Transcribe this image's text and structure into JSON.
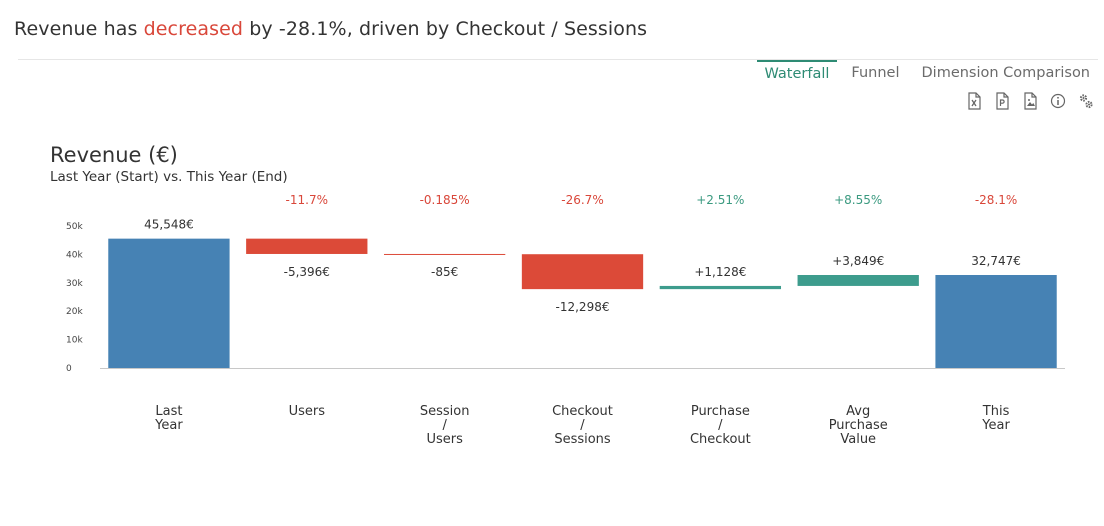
{
  "headline": {
    "prefix": "Revenue has",
    "highlight": "decreased",
    "suffix": "by -28.1%, driven by Checkout / Sessions"
  },
  "tabs": [
    {
      "label": "Waterfall",
      "active": true
    },
    {
      "label": "Funnel",
      "active": false
    },
    {
      "label": "Dimension Comparison",
      "active": false
    }
  ],
  "toolbar": {
    "icons": [
      "excel-export-icon",
      "pdf-export-icon",
      "image-export-icon",
      "info-icon",
      "settings-icon"
    ]
  },
  "colors": {
    "total": "#4682b4",
    "decrease": "#dc4a38",
    "increase": "#3d9c8d",
    "negative_text": "#d9473a",
    "positive_text": "#3b9a80",
    "axis": "#c8c8c8"
  },
  "chart_data": {
    "type": "waterfall",
    "title": "Revenue (€)",
    "subtitle": "Last Year (Start) vs. This Year (End)",
    "ylim": [
      0,
      50000
    ],
    "yticks": [
      "0",
      "10k",
      "20k",
      "30k",
      "40k",
      "50k"
    ],
    "ytick_values": [
      0,
      10000,
      20000,
      30000,
      40000,
      50000
    ],
    "steps": [
      {
        "category": [
          "Last",
          "Year"
        ],
        "kind": "total",
        "start": 0,
        "end": 45548,
        "value_label": "45,548€",
        "pct_label": ""
      },
      {
        "category": [
          "Users"
        ],
        "kind": "decrease",
        "start": 45548,
        "end": 40152,
        "value_label": "-5,396€",
        "pct_label": "-11.7%"
      },
      {
        "category": [
          "Session",
          "/",
          "Users"
        ],
        "kind": "decrease",
        "start": 40152,
        "end": 40067,
        "value_label": "-85€",
        "pct_label": "-0.185%"
      },
      {
        "category": [
          "Checkout",
          "/",
          "Sessions"
        ],
        "kind": "decrease",
        "start": 40067,
        "end": 27769,
        "value_label": "-12,298€",
        "pct_label": "-26.7%"
      },
      {
        "category": [
          "Purchase",
          "/",
          "Checkout"
        ],
        "kind": "increase",
        "start": 27769,
        "end": 28897,
        "value_label": "+1,128€",
        "pct_label": "+2.51%"
      },
      {
        "category": [
          "Avg",
          "Purchase",
          "Value"
        ],
        "kind": "increase",
        "start": 28897,
        "end": 32746,
        "value_label": "+3,849€",
        "pct_label": "+8.55%"
      },
      {
        "category": [
          "This",
          "Year"
        ],
        "kind": "total",
        "start": 0,
        "end": 32747,
        "value_label": "32,747€",
        "pct_label": "-28.1%"
      }
    ]
  }
}
